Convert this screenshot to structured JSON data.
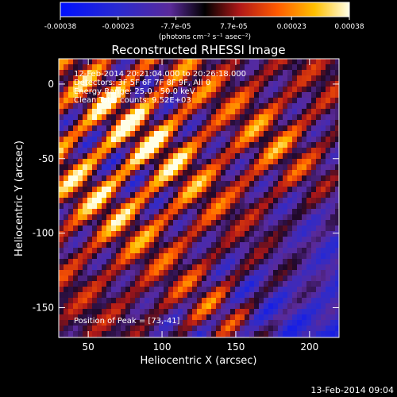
{
  "chart_data": {
    "type": "heatmap",
    "title": "Reconstructed RHESSI Image",
    "xlabel": "Heliocentric X (arcsec)",
    "ylabel": "Heliocentric Y (arcsec)",
    "xlim": [
      30,
      220
    ],
    "ylim": [
      -170,
      17
    ],
    "xticks": [
      50,
      100,
      150,
      200
    ],
    "yticks": [
      0,
      -50,
      -100,
      -150
    ],
    "annotations": [
      "12-Feb-2014 20:21:04.000 to 20:26:18.000",
      "Detectors: 3F 5F 6F 7F 8F 9F, All 0",
      "Energy Range: 25.0 - 50.0 keV",
      "Clean    Total counts: 9.52E+03"
    ],
    "peak_label": "Position of Peak = [73,-41]",
    "peak": [
      73,
      -41
    ],
    "colorbar": {
      "min": -0.00038,
      "max": 0.00038,
      "tick_labels": [
        "-0.00038",
        "-0.00023",
        "-7.7e-05",
        "7.7e-05",
        "0.00023",
        "0.00038"
      ],
      "unit_label": "(photons cm⁻² s⁻¹ asec⁻²)"
    },
    "timestamp": "13-Feb-2014 09:04"
  }
}
